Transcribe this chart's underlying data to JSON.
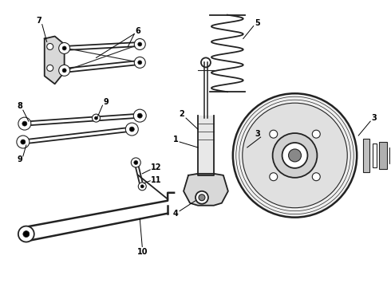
{
  "bg_color": "#ffffff",
  "line_color": "#222222",
  "figsize": [
    4.9,
    3.6
  ],
  "dpi": 100,
  "xlim": [
    0,
    490
  ],
  "ylim": [
    0,
    360
  ]
}
